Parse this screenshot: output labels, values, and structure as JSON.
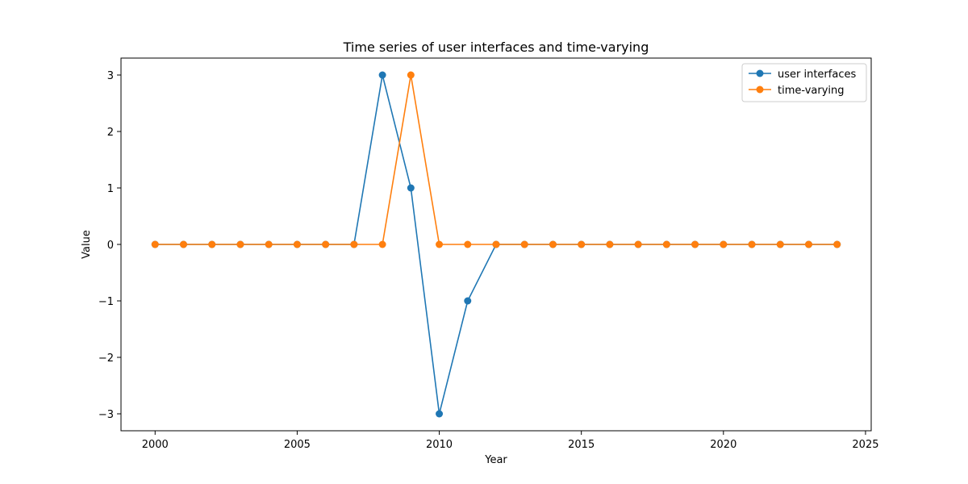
{
  "chart_data": {
    "type": "line",
    "title": "Time series of user interfaces and time-varying",
    "xlabel": "Year",
    "ylabel": "Value",
    "xlim": [
      1998.8,
      2025.2
    ],
    "ylim": [
      -3.3,
      3.3
    ],
    "xticks": [
      2000,
      2005,
      2010,
      2015,
      2020,
      2025
    ],
    "xtick_labels": [
      "2000",
      "2005",
      "2010",
      "2015",
      "2020",
      "2025"
    ],
    "yticks": [
      -3,
      -2,
      -1,
      0,
      1,
      2,
      3
    ],
    "ytick_labels": [
      "−3",
      "−2",
      "−1",
      "0",
      "1",
      "2",
      "3"
    ],
    "grid": false,
    "legend_position": "upper right",
    "x": [
      2000,
      2001,
      2002,
      2003,
      2004,
      2005,
      2006,
      2007,
      2008,
      2009,
      2010,
      2011,
      2012,
      2013,
      2014,
      2015,
      2016,
      2017,
      2018,
      2019,
      2020,
      2021,
      2022,
      2023,
      2024
    ],
    "series": [
      {
        "name": "user interfaces",
        "color": "#1f77b4",
        "marker": "circle",
        "values": [
          0,
          0,
          0,
          0,
          0,
          0,
          0,
          0,
          3,
          1,
          -3,
          -1,
          0,
          0,
          0,
          0,
          0,
          0,
          0,
          0,
          0,
          0,
          0,
          0,
          0
        ]
      },
      {
        "name": "time-varying",
        "color": "#ff7f0e",
        "marker": "circle",
        "values": [
          0,
          0,
          0,
          0,
          0,
          0,
          0,
          0,
          0,
          3,
          0,
          0,
          0,
          0,
          0,
          0,
          0,
          0,
          0,
          0,
          0,
          0,
          0,
          0,
          0
        ]
      }
    ]
  }
}
